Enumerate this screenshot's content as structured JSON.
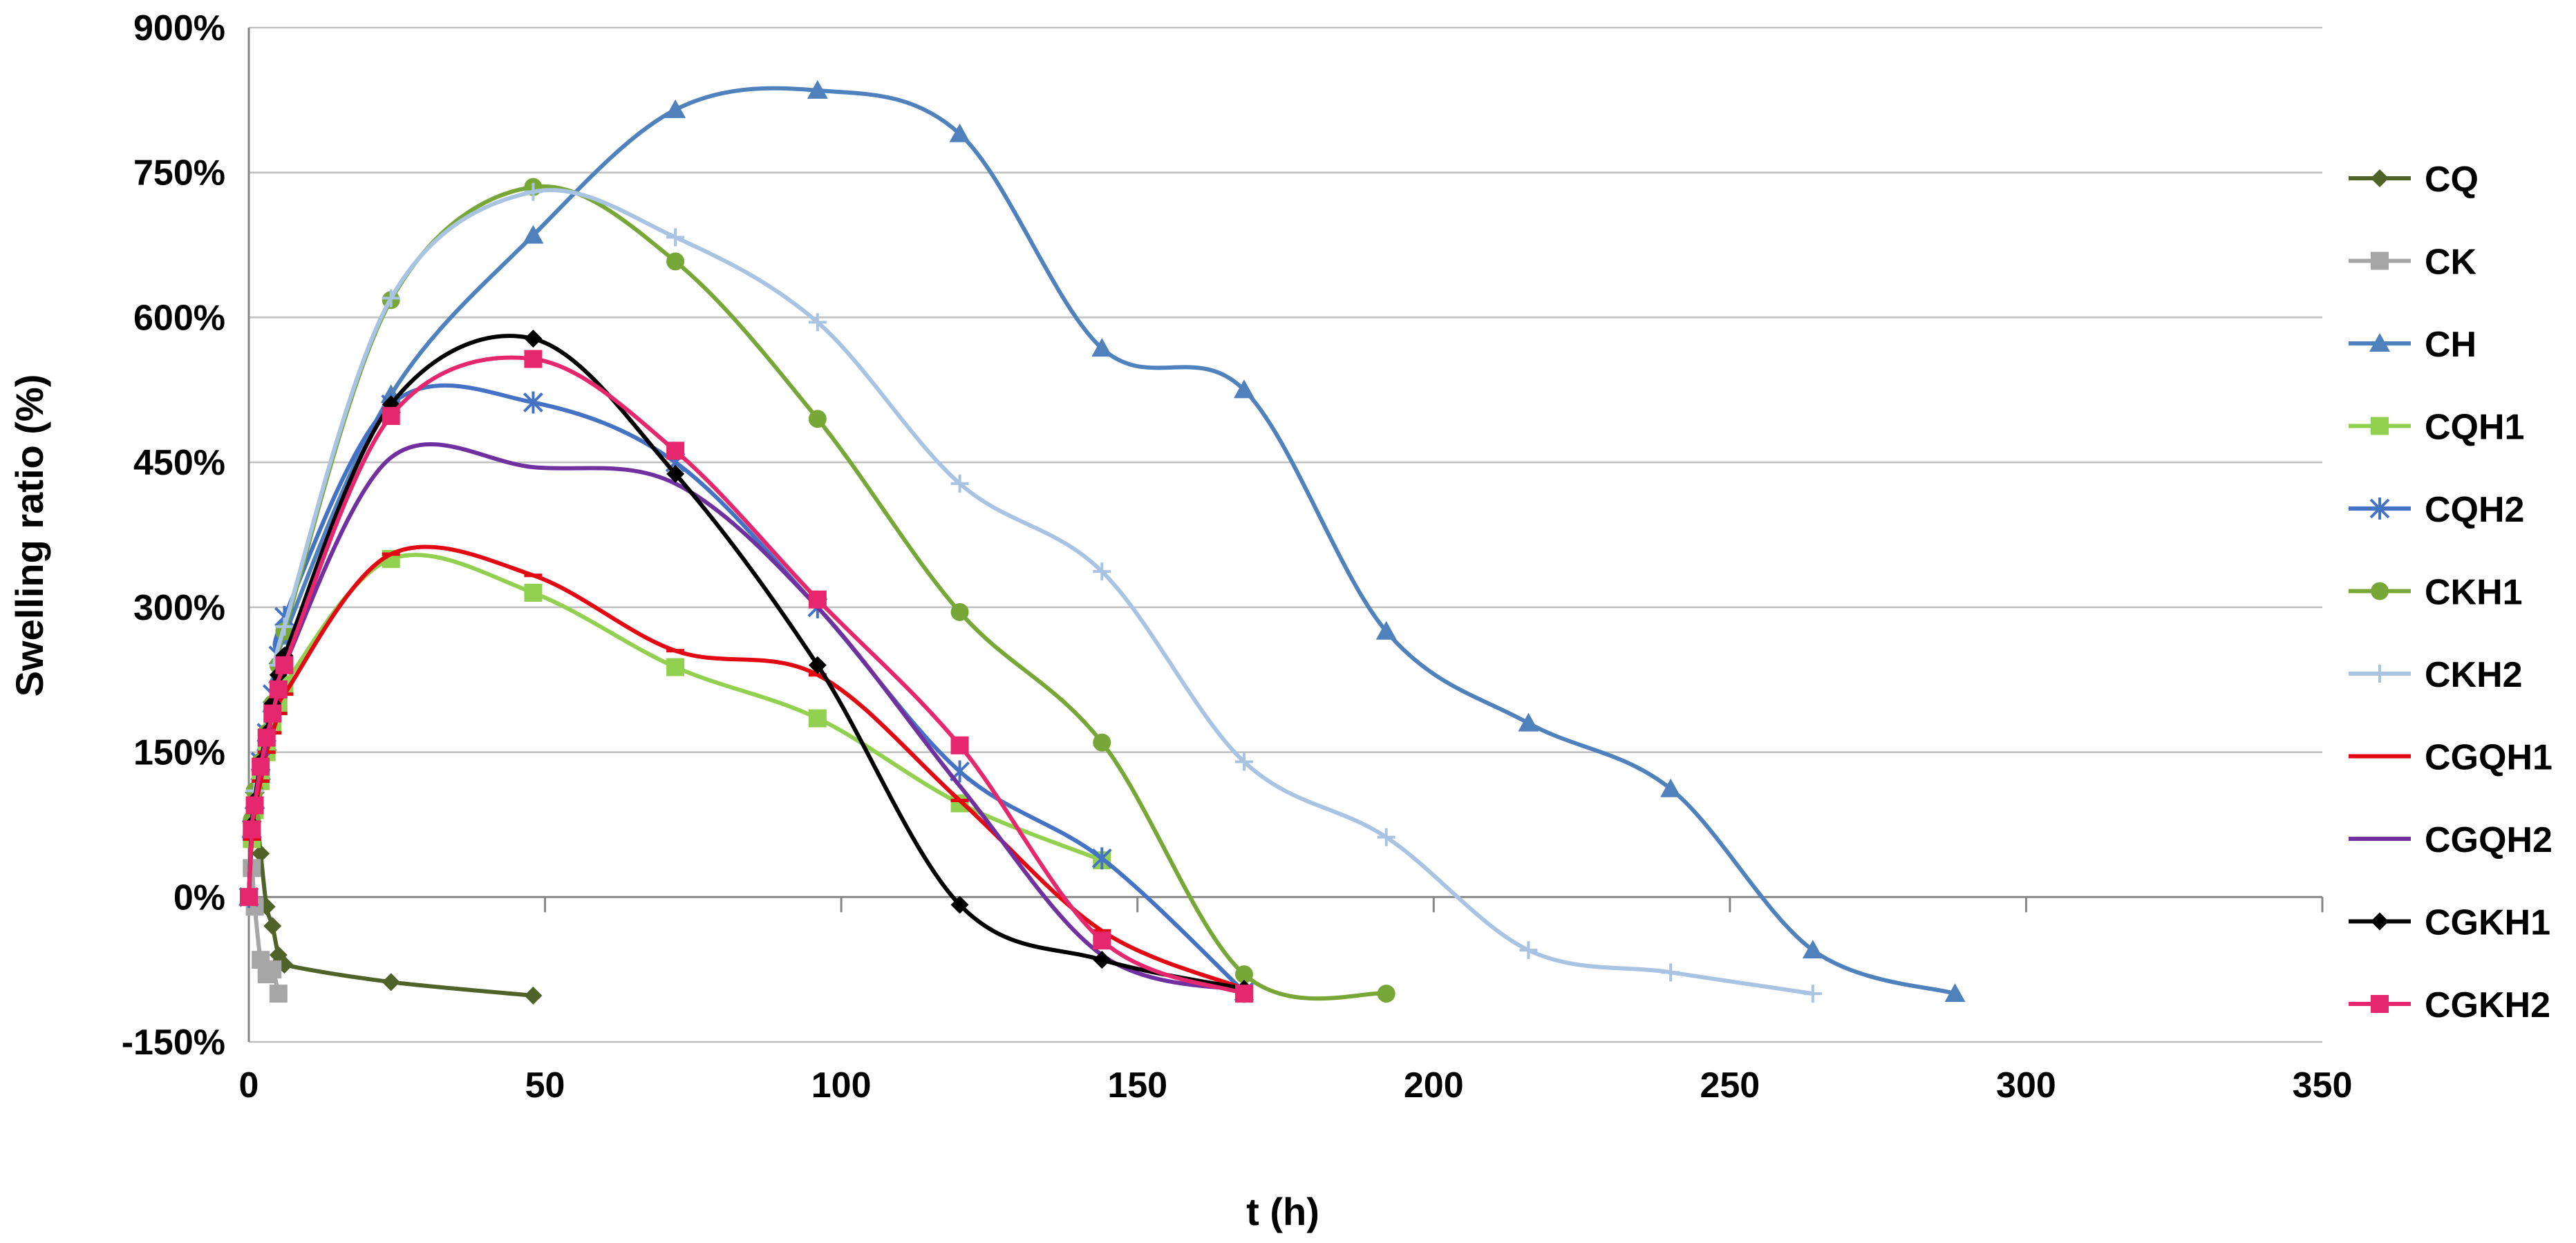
{
  "chart_data": {
    "type": "line",
    "title": "",
    "xlabel": "t (h)",
    "ylabel": "Swelling ratio (%)",
    "xlim": [
      0,
      350
    ],
    "ylim": [
      -150,
      900
    ],
    "xticks": [
      0,
      50,
      100,
      150,
      200,
      250,
      300,
      350
    ],
    "yticks": [
      -150,
      0,
      150,
      300,
      450,
      600,
      750,
      900
    ],
    "xtick_labels": [
      "0",
      "50",
      "100",
      "150",
      "200",
      "250",
      "300",
      "350"
    ],
    "ytick_labels": [
      "-150%",
      "0%",
      "150%",
      "300%",
      "450%",
      "600%",
      "750%",
      "900%"
    ],
    "grid": "horizontal",
    "legend_position": "right",
    "series": [
      {
        "name": "CQ",
        "color": "#4f6228",
        "marker": "diamond",
        "x": [
          0,
          0.5,
          1,
          2,
          3,
          4,
          5,
          6,
          24,
          48
        ],
        "y": [
          0,
          60,
          100,
          45,
          -10,
          -30,
          -60,
          -70,
          -88,
          -102
        ]
      },
      {
        "name": "CK",
        "color": "#a6a6a6",
        "marker": "square",
        "x": [
          0,
          0.5,
          1,
          2,
          3,
          4,
          5
        ],
        "y": [
          0,
          30,
          -10,
          -65,
          -80,
          -75,
          -100
        ]
      },
      {
        "name": "CH",
        "color": "#4f81bd",
        "marker": "triangle",
        "x": [
          0,
          0.5,
          1,
          2,
          3,
          4,
          5,
          6,
          24,
          48,
          72,
          96,
          120,
          144,
          168,
          192,
          216,
          240,
          264,
          288
        ],
        "y": [
          0,
          70,
          100,
          130,
          160,
          200,
          230,
          270,
          520,
          685,
          815,
          835,
          790,
          568,
          525,
          275,
          180,
          112,
          -55,
          -100
        ]
      },
      {
        "name": "CQH1",
        "color": "#92d050",
        "marker": "square",
        "x": [
          0,
          0.5,
          1,
          2,
          3,
          4,
          5,
          6,
          24,
          48,
          72,
          96,
          120,
          144
        ],
        "y": [
          0,
          60,
          90,
          120,
          150,
          180,
          200,
          220,
          350,
          315,
          238,
          185,
          97,
          38
        ]
      },
      {
        "name": "CQH2",
        "color": "#4472c4",
        "marker": "star",
        "x": [
          0,
          0.5,
          1,
          2,
          3,
          4,
          5,
          6,
          24,
          48,
          72,
          96,
          120,
          144,
          168
        ],
        "y": [
          0,
          70,
          100,
          140,
          170,
          210,
          250,
          290,
          510,
          512,
          450,
          300,
          130,
          40,
          -98
        ]
      },
      {
        "name": "CKH1",
        "color": "#77a737",
        "marker": "circle",
        "x": [
          0,
          0.5,
          1,
          2,
          3,
          4,
          5,
          6,
          24,
          48,
          72,
          96,
          120,
          144,
          168,
          192
        ],
        "y": [
          0,
          80,
          110,
          140,
          170,
          200,
          240,
          275,
          618,
          735,
          658,
          495,
          295,
          160,
          -80,
          -100
        ]
      },
      {
        "name": "CKH2",
        "color": "#a9c3e3",
        "marker": "plus",
        "x": [
          0,
          0.5,
          1,
          2,
          3,
          4,
          5,
          6,
          24,
          48,
          72,
          96,
          120,
          144,
          168,
          192,
          216,
          240,
          264
        ],
        "y": [
          0,
          75,
          110,
          140,
          170,
          200,
          240,
          280,
          620,
          730,
          683,
          595,
          428,
          337,
          140,
          62,
          -55,
          -78,
          -100
        ]
      },
      {
        "name": "CGQH1",
        "color": "#e30613",
        "marker": "dash",
        "x": [
          0,
          0.5,
          1,
          2,
          3,
          4,
          5,
          6,
          24,
          48,
          72,
          96,
          120,
          144,
          168
        ],
        "y": [
          0,
          60,
          90,
          120,
          150,
          170,
          190,
          210,
          355,
          333,
          255,
          230,
          100,
          -35,
          -95
        ]
      },
      {
        "name": "CGQH2",
        "color": "#7030a0",
        "marker": "none",
        "x": [
          0,
          0.5,
          1,
          2,
          3,
          4,
          5,
          6,
          24,
          48,
          72,
          96,
          120,
          144,
          168
        ],
        "y": [
          0,
          70,
          100,
          130,
          160,
          190,
          210,
          240,
          455,
          445,
          428,
          300,
          115,
          -60,
          -97
        ]
      },
      {
        "name": "CGKH1",
        "color": "#000000",
        "marker": "diamond",
        "x": [
          0,
          0.5,
          1,
          2,
          3,
          4,
          5,
          6,
          24,
          48,
          72,
          96,
          120,
          144,
          168
        ],
        "y": [
          0,
          75,
          100,
          140,
          170,
          200,
          230,
          250,
          510,
          578,
          438,
          240,
          -8,
          -65,
          -95
        ]
      },
      {
        "name": "CGKH2",
        "color": "#e6276d",
        "marker": "square",
        "x": [
          0,
          0.5,
          1,
          2,
          3,
          4,
          5,
          6,
          24,
          48,
          72,
          96,
          120,
          144,
          168
        ],
        "y": [
          0,
          70,
          95,
          135,
          165,
          190,
          215,
          240,
          498,
          557,
          462,
          308,
          157,
          -45,
          -100
        ]
      }
    ]
  }
}
